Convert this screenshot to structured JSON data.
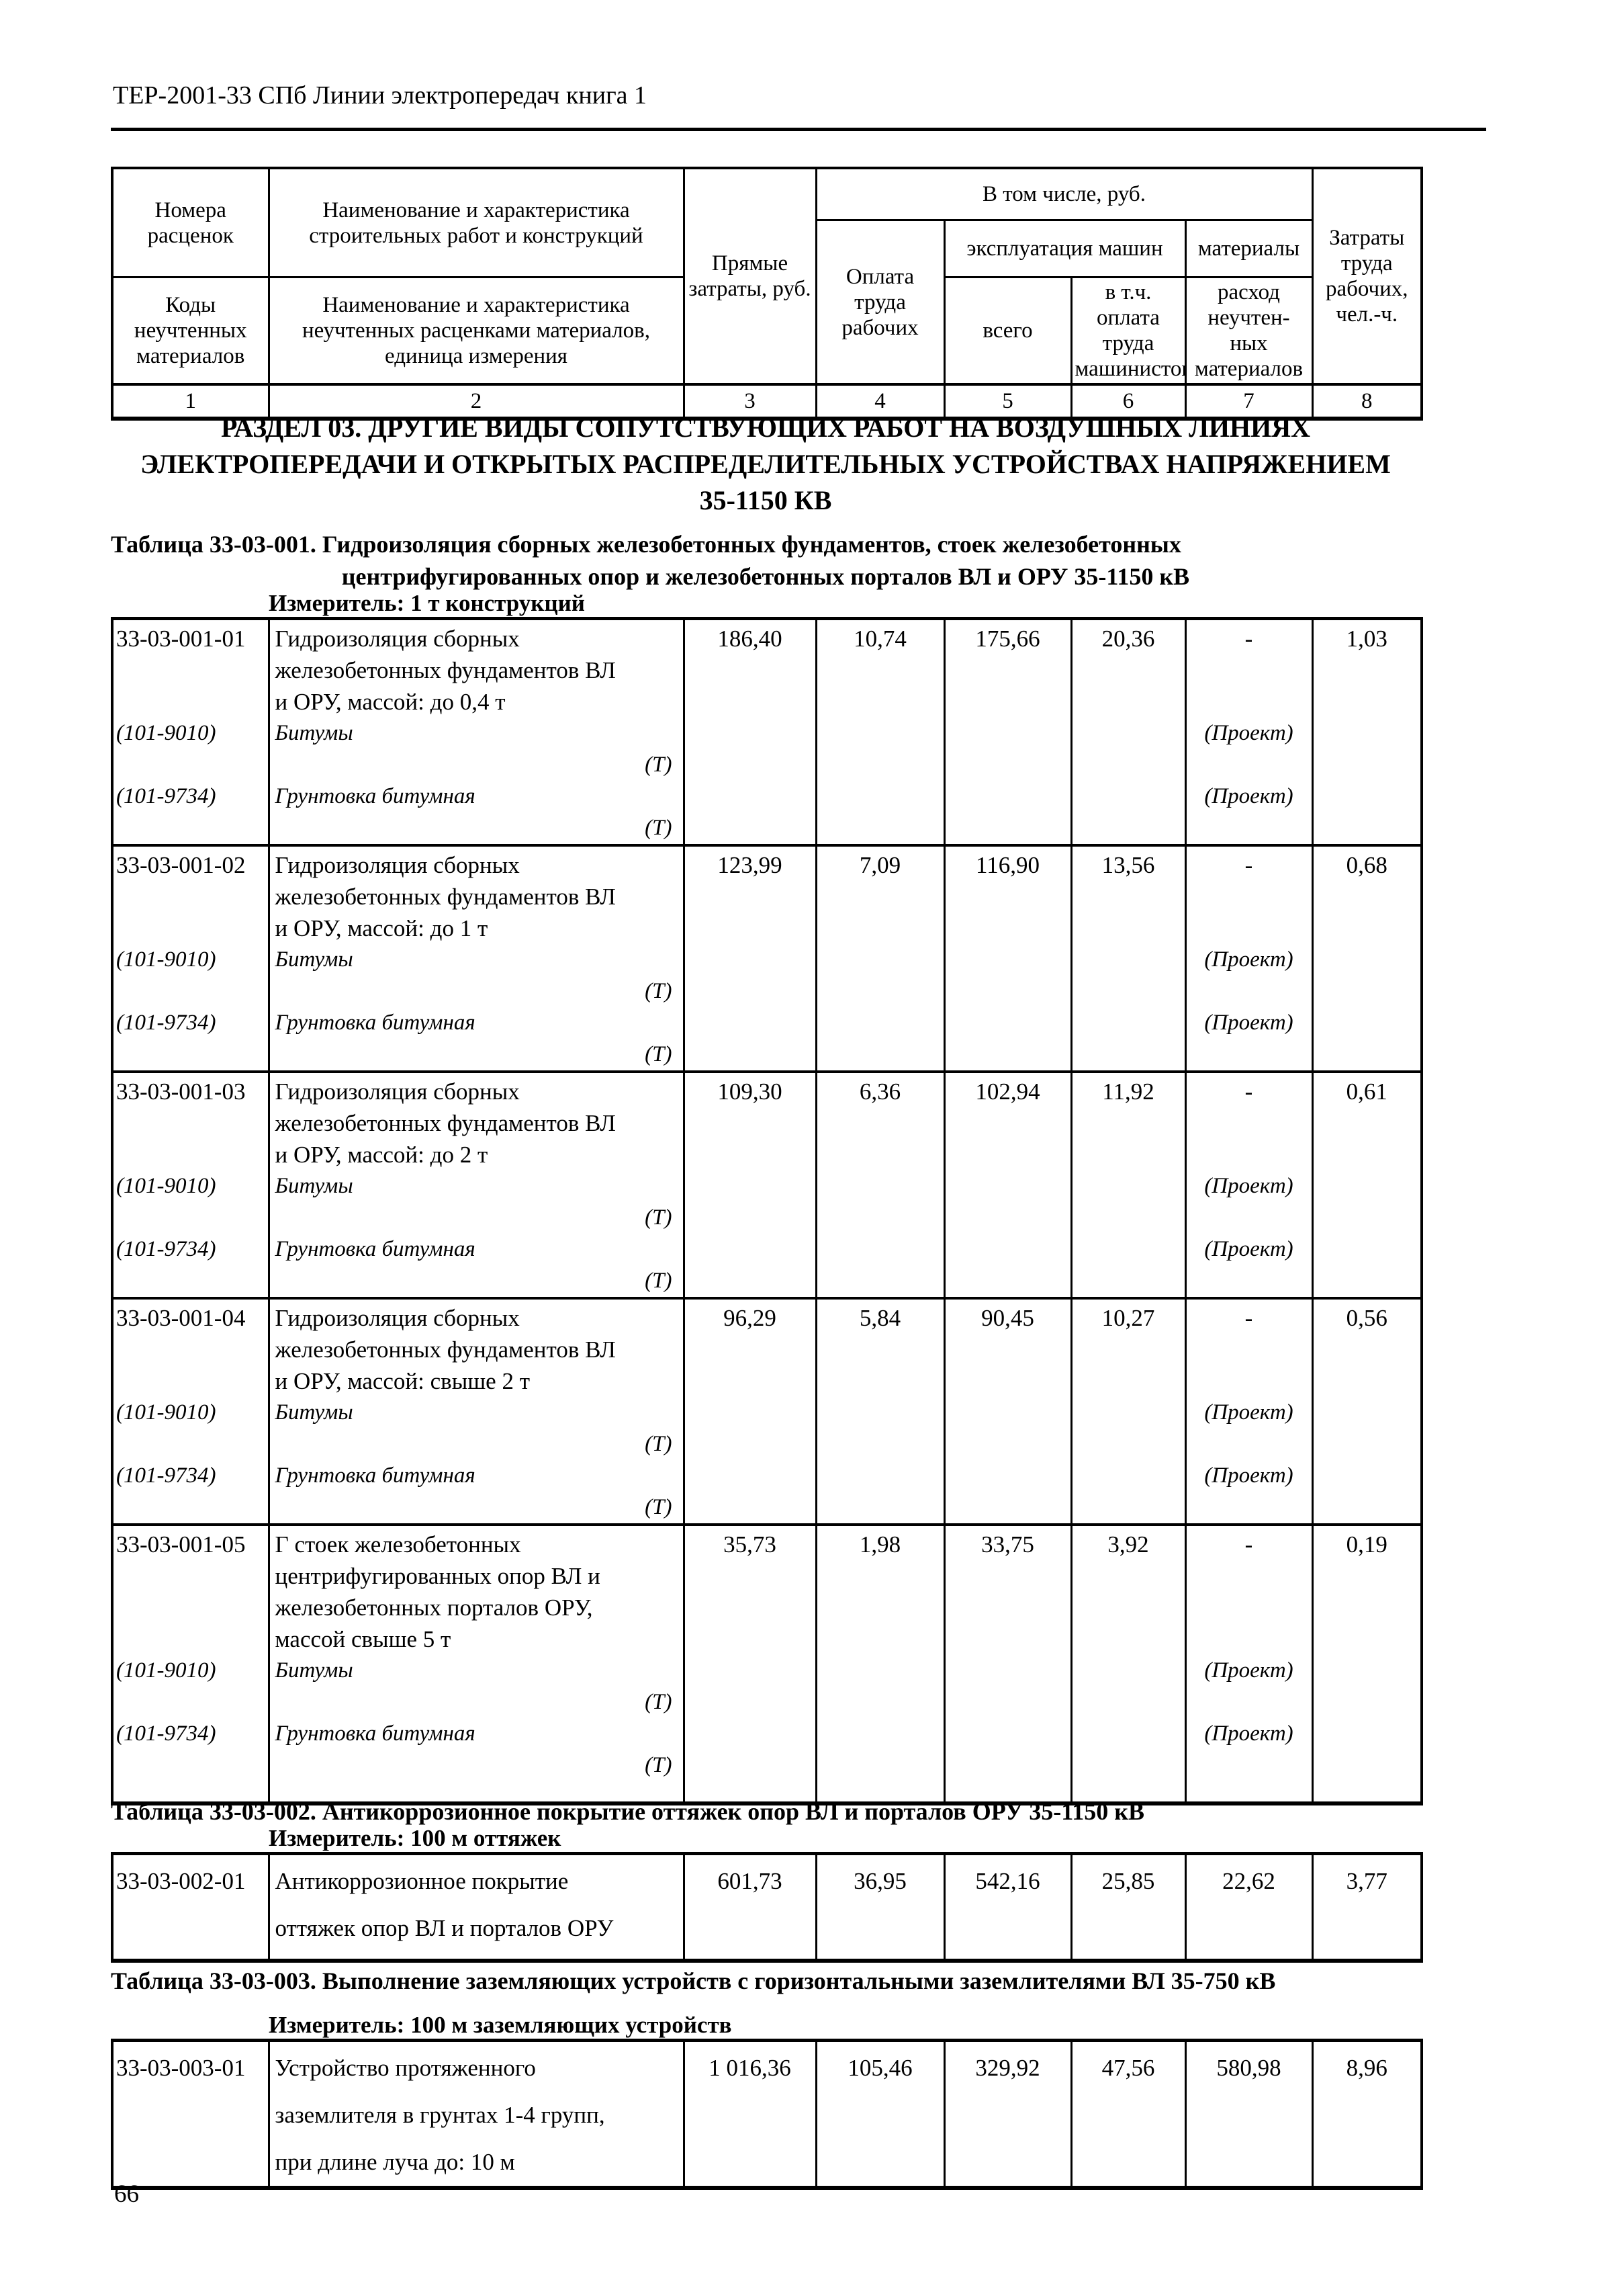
{
  "theme": {
    "ink": "#000000",
    "paper": "#ffffff"
  },
  "page": {
    "header": "ТЕР-2001-33 СПб Линии электропередач книга 1",
    "number": "66"
  },
  "table_header": {
    "col1_top": "Номера расценок",
    "col2_top": "Наименование и характеристика строительных работ и конструкций",
    "col3": "Прямые затраты, руб.",
    "in_total": "В том числе, руб.",
    "col8": "Затраты труда рабочих, чел.-ч.",
    "col4": "Оплата труда рабочих",
    "machines": "эксплуатация машин",
    "materials": "материалы",
    "col1_bottom": "Коды неучтенных материалов",
    "col2_bottom": "Наименование и характеристика неучтенных расценками материалов, единица измерения",
    "col5": "всего",
    "col6": "в т.ч. оплата труда машинистов",
    "col7": "расход неучтен- ных материалов",
    "numbers": [
      "1",
      "2",
      "3",
      "4",
      "5",
      "6",
      "7",
      "8"
    ]
  },
  "section": {
    "title_lines": [
      "РАЗДЕЛ 03. ДРУГИЕ ВИДЫ СОПУТСТВУЮЩИХ РАБОТ НА ВОЗДУШНЫХ ЛИНИЯХ",
      "ЭЛЕКТРОПЕРЕДАЧИ И ОТКРЫТЫХ РАСПРЕДЕЛИТЕЛЬНЫХ УСТРОЙСТВАХ НАПРЯЖЕНИЕМ",
      "35-1150 КВ"
    ]
  },
  "tables": [
    {
      "title_lines": [
        "Таблица 33-03-001. Гидроизоляция сборных железобетонных фундаментов, стоек железобетонных",
        "центрифугированных опор и железобетонных порталов ВЛ и ОРУ 35-1150 кВ"
      ],
      "measure": "Измеритель: 1 т конструкций",
      "blocks": [
        {
          "code": "33-03-001-01",
          "desc": [
            "Гидроизоляция сборных",
            "железобетонных фундаментов ВЛ",
            "и ОРУ, массой: до 0,4 т"
          ],
          "values": [
            "186,40",
            "10,74",
            "175,66",
            "20,36",
            "-",
            "1,03"
          ],
          "materials": [
            {
              "code": "(101-9010)",
              "name": "Битумы",
              "unit": "(Т)",
              "qty": "(Проект)"
            },
            {
              "code": "(101-9734)",
              "name": "Грунтовка битумная",
              "unit": "(Т)",
              "qty": "(Проект)"
            }
          ]
        },
        {
          "code": "33-03-001-02",
          "desc": [
            "Гидроизоляция сборных",
            "железобетонных фундаментов ВЛ",
            "и ОРУ, массой: до 1 т"
          ],
          "values": [
            "123,99",
            "7,09",
            "116,90",
            "13,56",
            "-",
            "0,68"
          ],
          "materials": [
            {
              "code": "(101-9010)",
              "name": "Битумы",
              "unit": "(Т)",
              "qty": "(Проект)"
            },
            {
              "code": "(101-9734)",
              "name": "Грунтовка битумная",
              "unit": "(Т)",
              "qty": "(Проект)"
            }
          ]
        },
        {
          "code": "33-03-001-03",
          "desc": [
            "Гидроизоляция сборных",
            "железобетонных фундаментов ВЛ",
            "и ОРУ, массой: до 2 т"
          ],
          "values": [
            "109,30",
            "6,36",
            "102,94",
            "11,92",
            "-",
            "0,61"
          ],
          "materials": [
            {
              "code": "(101-9010)",
              "name": "Битумы",
              "unit": "(Т)",
              "qty": "(Проект)"
            },
            {
              "code": "(101-9734)",
              "name": "Грунтовка битумная",
              "unit": "(Т)",
              "qty": "(Проект)"
            }
          ]
        },
        {
          "code": "33-03-001-04",
          "desc": [
            "Гидроизоляция сборных",
            "железобетонных фундаментов ВЛ",
            "и ОРУ, массой: свыше 2 т"
          ],
          "values": [
            "96,29",
            "5,84",
            "90,45",
            "10,27",
            "-",
            "0,56"
          ],
          "materials": [
            {
              "code": "(101-9010)",
              "name": "Битумы",
              "unit": "(Т)",
              "qty": "(Проект)"
            },
            {
              "code": "(101-9734)",
              "name": "Грунтовка битумная",
              "unit": "(Т)",
              "qty": "(Проект)"
            }
          ]
        },
        {
          "code": "33-03-001-05",
          "desc": [
            "Г стоек железобетонных",
            "центрифугированных опор ВЛ и",
            "железобетонных порталов ОРУ,",
            "массой свыше 5 т"
          ],
          "values": [
            "35,73",
            "1,98",
            "33,75",
            "3,92",
            "-",
            "0,19"
          ],
          "materials": [
            {
              "code": "(101-9010)",
              "name": "Битумы",
              "unit": "(Т)",
              "qty": "(Проект)"
            },
            {
              "code": "(101-9734)",
              "name": "Грунтовка битумная",
              "unit": "(Т)",
              "qty": "(Проект)"
            }
          ]
        }
      ]
    },
    {
      "title_lines": [
        "Таблица 33-03-002. Антикоррозионное покрытие оттяжек опор ВЛ и порталов ОРУ 35-1150 кВ"
      ],
      "measure": "Измеритель: 100 м оттяжек",
      "blocks": [
        {
          "code": "33-03-002-01",
          "desc": [
            "Антикоррозионное покрытие",
            "оттяжек опор ВЛ и порталов ОРУ"
          ],
          "values": [
            "601,73",
            "36,95",
            "542,16",
            "25,85",
            "22,62",
            "3,77"
          ],
          "materials": []
        }
      ]
    },
    {
      "title_lines": [
        "Таблица 33-03-003. Выполнение заземляющих устройств с горизонтальными заземлителями ВЛ 35-750 кВ"
      ],
      "measure": "Измеритель: 100 м заземляющих устройств",
      "blocks": [
        {
          "code": "33-03-003-01",
          "desc": [
            "Устройство протяженного",
            "заземлителя в грунтах 1-4 групп,",
            "при длине луча до: 10 м"
          ],
          "values": [
            "1 016,36",
            "105,46",
            "329,92",
            "47,56",
            "580,98",
            "8,96"
          ],
          "materials": []
        }
      ]
    }
  ]
}
